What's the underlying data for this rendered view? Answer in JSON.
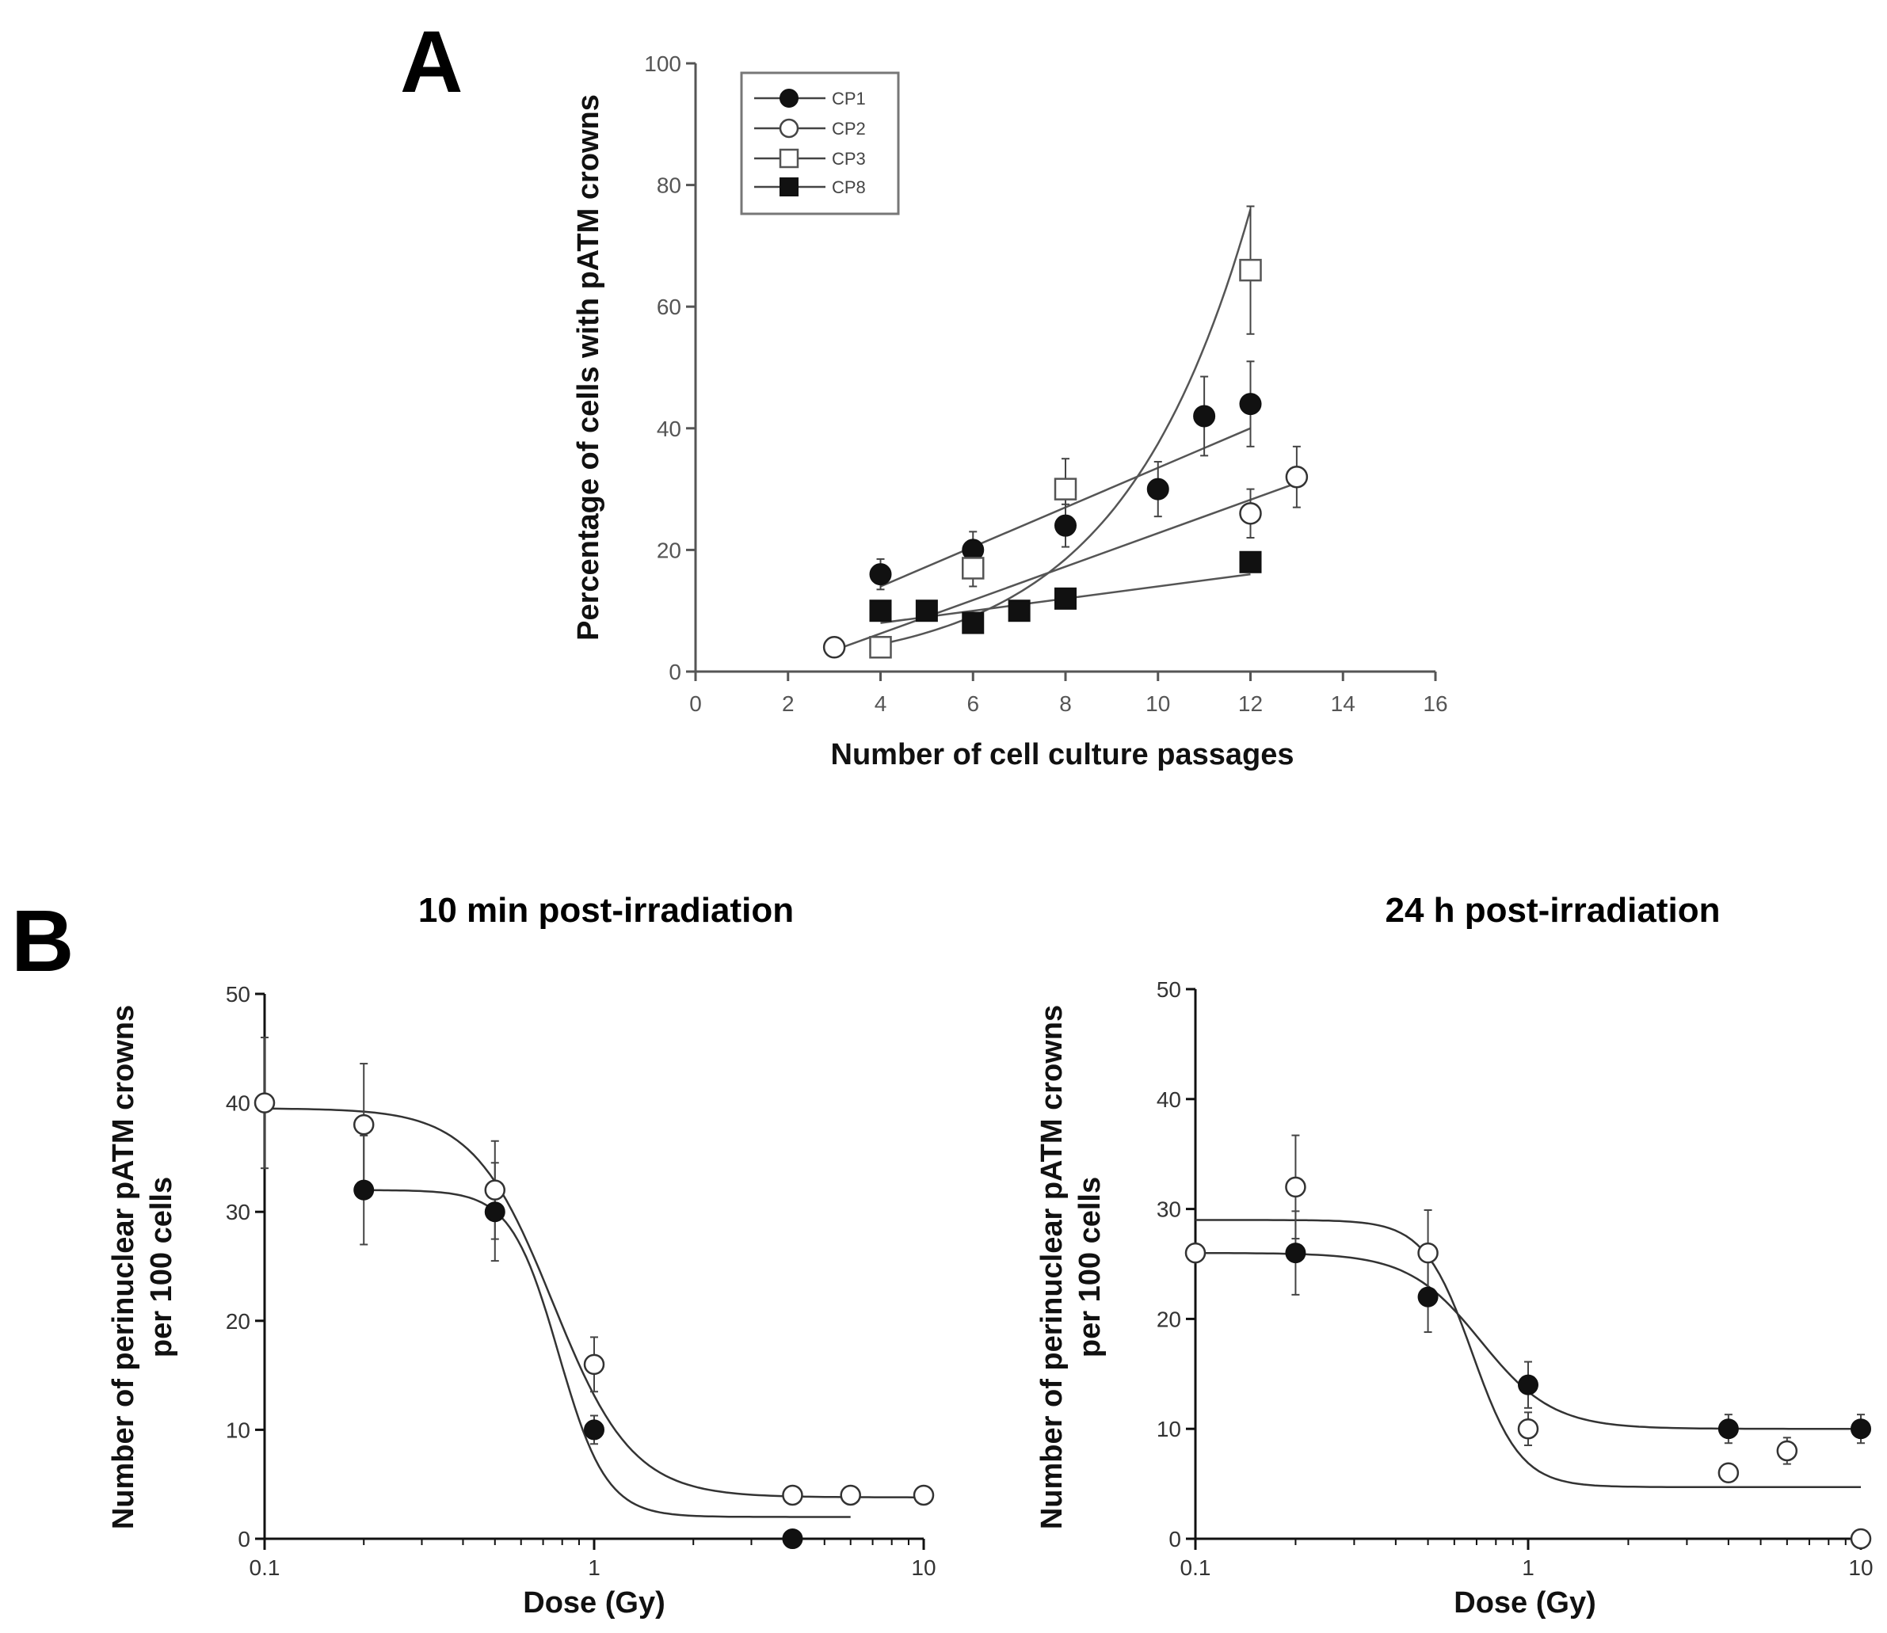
{
  "panels": {
    "A": "A",
    "B": "B"
  },
  "chart_data": [
    {
      "id": "A",
      "type": "scatter",
      "title": "",
      "xlabel": "Number of cell culture passages",
      "ylabel": "Percentage of cells with pATM crowns",
      "xlim": [
        0,
        16
      ],
      "ylim": [
        0,
        100
      ],
      "xticks": [
        "0",
        "2",
        "4",
        "6",
        "8",
        "10",
        "12",
        "14",
        "16"
      ],
      "yticks": [
        "0",
        "20",
        "40",
        "60",
        "80",
        "100"
      ],
      "legend_position": "top-left",
      "series": [
        {
          "name": "CP1",
          "marker": "filled-circle",
          "x": [
            4,
            6,
            8,
            10,
            11,
            12
          ],
          "y": [
            16,
            20,
            24,
            30,
            42,
            44
          ],
          "err": [
            2.5,
            3,
            3.5,
            4.5,
            6.5,
            7
          ],
          "fit": "linear",
          "fit_x": [
            4,
            12
          ],
          "fit_y": [
            14,
            40
          ]
        },
        {
          "name": "CP2",
          "marker": "open-circle",
          "x": [
            3,
            12,
            13
          ],
          "y": [
            4,
            26,
            32
          ],
          "err": [
            0,
            4,
            5
          ],
          "fit": "linear",
          "fit_x": [
            3,
            13
          ],
          "fit_y": [
            3.5,
            31
          ]
        },
        {
          "name": "CP3",
          "marker": "open-square",
          "x": [
            4,
            6,
            8,
            12
          ],
          "y": [
            4,
            17,
            30,
            66
          ],
          "err": [
            1.5,
            3,
            5,
            10.5
          ],
          "fit": "exponential",
          "fit_x": [
            4,
            12
          ],
          "fit_y": [
            4.5,
            76
          ]
        },
        {
          "name": "CP8",
          "marker": "filled-square",
          "x": [
            4,
            5,
            6,
            7,
            8,
            12
          ],
          "y": [
            10,
            10,
            8,
            10,
            12,
            18
          ],
          "err": [
            1,
            1,
            1,
            1,
            1,
            1
          ],
          "fit": "linear",
          "fit_x": [
            4,
            12
          ],
          "fit_y": [
            8,
            16
          ]
        }
      ]
    },
    {
      "id": "B-left",
      "type": "scatter",
      "title": "10 min post-irradiation",
      "xlabel": "Dose (Gy)",
      "ylabel": [
        "Number of perinuclear pATM crowns",
        "per 100 cells"
      ],
      "xscale": "log",
      "xlim": [
        0.1,
        10
      ],
      "ylim": [
        0,
        50
      ],
      "xticks": [
        "0.1",
        "1",
        "10"
      ],
      "yticks": [
        "0",
        "10",
        "20",
        "30",
        "40",
        "50"
      ],
      "series": [
        {
          "name": "filled",
          "marker": "filled-circle",
          "x": [
            0.2,
            0.5,
            1,
            4
          ],
          "y": [
            32,
            30,
            10,
            0
          ],
          "err": [
            5,
            4.5,
            1.3,
            0
          ],
          "fit": "sigmoid",
          "fit_top": 32,
          "fit_bottom": 2,
          "fit_ec50": 0.78,
          "fit_hill": 6,
          "fit_range": [
            0.2,
            6
          ]
        },
        {
          "name": "open",
          "marker": "open-circle",
          "x": [
            0.1,
            0.2,
            0.5,
            1,
            4,
            6,
            10
          ],
          "y": [
            40,
            38,
            32,
            16,
            4,
            4,
            4
          ],
          "err": [
            6,
            5.6,
            4.5,
            2.5,
            0,
            0,
            0
          ],
          "fit": "sigmoid",
          "fit_top": 39.5,
          "fit_bottom": 3.8,
          "fit_ec50": 0.75,
          "fit_hill": 3.6,
          "fit_range": [
            0.1,
            10
          ]
        }
      ]
    },
    {
      "id": "B-right",
      "type": "scatter",
      "title": "24 h post-irradiation",
      "xlabel": "Dose (Gy)",
      "ylabel": [
        "Number of perinuclear pATM crowns",
        "per 100 cells"
      ],
      "xscale": "log",
      "xlim": [
        0.1,
        10
      ],
      "ylim": [
        0,
        50
      ],
      "xticks": [
        "0.1",
        "1",
        "10"
      ],
      "yticks": [
        "0",
        "10",
        "20",
        "30",
        "40",
        "50"
      ],
      "series": [
        {
          "name": "filled",
          "marker": "filled-circle",
          "x": [
            0.2,
            0.5,
            1,
            4,
            10
          ],
          "y": [
            26,
            22,
            14,
            10,
            10
          ],
          "err": [
            3.8,
            3.2,
            2.1,
            1.3,
            1.3
          ],
          "fit": "sigmoid",
          "fit_top": 26,
          "fit_bottom": 10,
          "fit_ec50": 0.72,
          "fit_hill": 4,
          "fit_range": [
            0.1,
            10
          ]
        },
        {
          "name": "open",
          "marker": "open-circle",
          "x": [
            0.1,
            0.2,
            0.5,
            1,
            4,
            6,
            10
          ],
          "y": [
            26,
            32,
            26,
            10,
            6,
            8,
            0
          ],
          "err": [
            0,
            4.7,
            3.9,
            1.5,
            0.6,
            1.2,
            0
          ],
          "fit": "sigmoid",
          "fit_top": 29,
          "fit_bottom": 4.7,
          "fit_ec50": 0.68,
          "fit_hill": 6,
          "fit_range": [
            0.1,
            10
          ]
        }
      ]
    }
  ]
}
